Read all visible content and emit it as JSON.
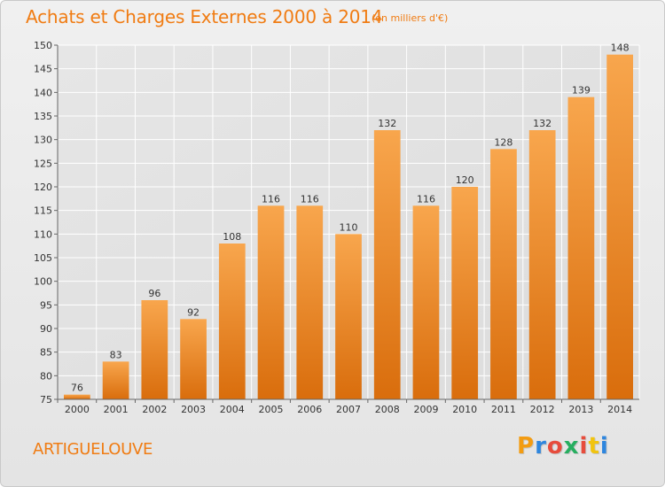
{
  "header": {
    "title": "Achats et Charges Externes 2000 à 2014",
    "unit": "(en milliers d'€)"
  },
  "footer": {
    "commune": "ARTIGUELOUVE",
    "logo_text": "Proxiti",
    "logo_colors": [
      "#f39c12",
      "#2e86de",
      "#e74c3c",
      "#27ae60",
      "#e74c3c",
      "#f1c40f",
      "#2e86de"
    ]
  },
  "chart_data": {
    "type": "bar",
    "categories": [
      "2000",
      "2001",
      "2002",
      "2003",
      "2004",
      "2005",
      "2006",
      "2007",
      "2008",
      "2009",
      "2010",
      "2011",
      "2012",
      "2013",
      "2014"
    ],
    "values": [
      76,
      83,
      96,
      92,
      108,
      116,
      116,
      110,
      132,
      116,
      120,
      128,
      132,
      139,
      148
    ],
    "title": "Achats et Charges Externes 2000 à 2014",
    "ylim": [
      75,
      150
    ],
    "yticks": [
      75,
      80,
      85,
      90,
      95,
      100,
      105,
      110,
      115,
      120,
      125,
      130,
      135,
      140,
      145,
      150
    ],
    "grid": true,
    "colors": {
      "bar_light": "#f8a64d",
      "bar_dark": "#d96d0c",
      "grid": "#ffffff",
      "axis": "#666666"
    }
  }
}
